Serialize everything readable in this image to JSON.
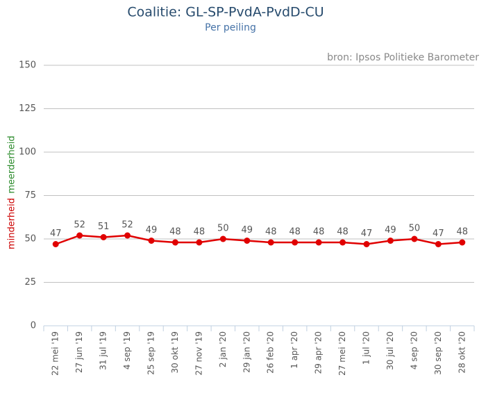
{
  "chart_data": {
    "type": "line",
    "title": "Coalitie: GL-SP-PvdA-PvdD-CU",
    "subtitle": "Per peiling",
    "source": "bron: Ipsos Politieke Barometer",
    "ylabel_minority": "minderheid",
    "ylabel_majority": "meerderheid",
    "categories": [
      "22 mei '19",
      "27 jun '19",
      "31 jul '19",
      "4 sep '19",
      "25 sep '19",
      "30 okt '19",
      "27 nov '19",
      "2 jan '20",
      "29 jan '20",
      "26 feb '20",
      "1 apr '20",
      "29 apr '20",
      "27 mei '20",
      "1 jul '20",
      "30 jul '20",
      "4 sep '20",
      "30 sep '20",
      "28 okt '20"
    ],
    "series": [
      {
        "color": "#e00000",
        "values": [
          47,
          52,
          51,
          52,
          49,
          48,
          48,
          50,
          49,
          48,
          48,
          48,
          48,
          47,
          49,
          50,
          47,
          48
        ]
      }
    ],
    "ylim": [
      0,
      150
    ],
    "yticks": [
      0,
      25,
      50,
      75,
      100,
      125,
      150
    ],
    "grid": true
  }
}
